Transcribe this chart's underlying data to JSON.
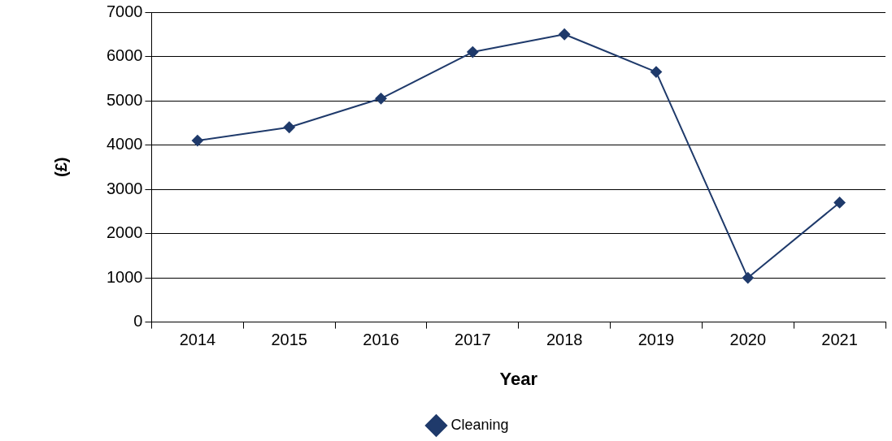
{
  "chart_data": {
    "type": "line",
    "xlabel": "Year",
    "ylabel": "(£)",
    "categories": [
      "2014",
      "2015",
      "2016",
      "2017",
      "2018",
      "2019",
      "2020",
      "2021"
    ],
    "series": [
      {
        "name": "Cleaning",
        "color": "#1f3a6b",
        "values": [
          4100,
          4400,
          5050,
          6100,
          6500,
          5650,
          1000,
          2700
        ]
      }
    ],
    "ylim": [
      0,
      7000
    ],
    "yticks": [
      0,
      1000,
      2000,
      3000,
      4000,
      5000,
      6000,
      7000
    ],
    "grid": "y",
    "legend": "bottom",
    "marker": "diamond",
    "line_style": "solid"
  }
}
